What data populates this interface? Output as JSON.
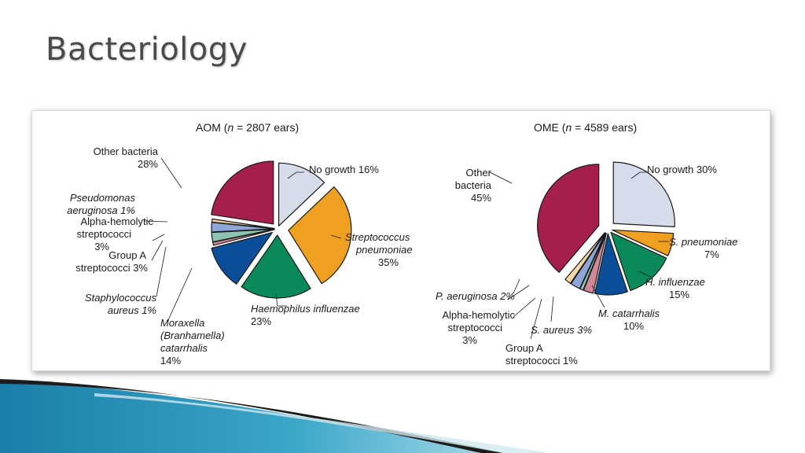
{
  "slide": {
    "title": "Bacteriology"
  },
  "colors": {
    "no_growth": "#d6dcea",
    "s_pneumoniae": "#f0a020",
    "h_influenzae": "#0a8a5a",
    "moraxella": "#0a4e9a",
    "s_aureus": "#d08898",
    "group_a": "#8cc4b0",
    "alpha_hemolytic": "#8ea6d8",
    "pseudomonas": "#f6d8a8",
    "other": "#a4204a"
  },
  "chart_data": [
    {
      "type": "pie",
      "title_pre": "AOM (",
      "title_n": "n",
      "title_post": " = 2807 ears)",
      "slices": [
        {
          "name": "No growth",
          "value": 16,
          "color_key": "no_growth"
        },
        {
          "name": "Streptococcus pneumoniae",
          "value": 35,
          "color_key": "s_pneumoniae"
        },
        {
          "name": "Haemophilus influenzae",
          "value": 23,
          "color_key": "h_influenzae"
        },
        {
          "name": "Moraxella (Branhamella) catarrhalis",
          "value": 14,
          "color_key": "moraxella"
        },
        {
          "name": "Staphylococcus aureus",
          "value": 1,
          "color_key": "s_aureus"
        },
        {
          "name": "Group A streptococci",
          "value": 3,
          "color_key": "group_a"
        },
        {
          "name": "Alpha-hemolytic streptococci",
          "value": 3,
          "color_key": "alpha_hemolytic"
        },
        {
          "name": "Pseudomonas aeruginosa",
          "value": 1,
          "color_key": "pseudomonas"
        },
        {
          "name": "Other bacteria",
          "value": 28,
          "color_key": "other"
        }
      ],
      "labels": {
        "no_growth": "No growth 16%",
        "s_pneumoniae": [
          "Streptococcus",
          "pneumoniae",
          "35%"
        ],
        "h_influenzae": [
          "Haemophilus influenzae",
          "23%"
        ],
        "moraxella": [
          "Moraxella",
          "(Branhamella)",
          "catarrhalis",
          "14%"
        ],
        "s_aureus": [
          "Staphylococcus",
          "aureus 1%"
        ],
        "group_a": [
          "Group A",
          "streptococci 3%"
        ],
        "alpha_hemolytic": [
          "Alpha-hemolytic",
          "streptococci",
          "3%"
        ],
        "pseudomonas": [
          "Pseudomonas",
          "aeruginosa 1%"
        ],
        "other": [
          "Other bacteria",
          "28%"
        ]
      }
    },
    {
      "type": "pie",
      "title_pre": "OME (",
      "title_n": "n",
      "title_post": " = 4589 ears)",
      "slices": [
        {
          "name": "No growth",
          "value": 30,
          "color_key": "no_growth"
        },
        {
          "name": "S. pneumoniae",
          "value": 7,
          "color_key": "s_pneumoniae"
        },
        {
          "name": "H. influenzae",
          "value": 15,
          "color_key": "h_influenzae"
        },
        {
          "name": "M. catarrhalis",
          "value": 10,
          "color_key": "moraxella"
        },
        {
          "name": "S. aureus",
          "value": 3,
          "color_key": "s_aureus"
        },
        {
          "name": "Group A streptococci",
          "value": 1,
          "color_key": "group_a"
        },
        {
          "name": "Alpha-hemolytic streptococci",
          "value": 3,
          "color_key": "alpha_hemolytic"
        },
        {
          "name": "P. aeruginosa",
          "value": 2,
          "color_key": "pseudomonas"
        },
        {
          "name": "Other bacteria",
          "value": 45,
          "color_key": "other"
        }
      ],
      "labels": {
        "no_growth": "No growth 30%",
        "s_pneumoniae": [
          "S. pneumoniae",
          "7%"
        ],
        "h_influenzae": [
          "H. influenzae",
          "15%"
        ],
        "moraxella": [
          "M. catarrhalis",
          "10%"
        ],
        "s_aureus": "S. aureus 3%",
        "group_a": [
          "Group A",
          "streptococci 1%"
        ],
        "alpha_hemolytic": [
          "Alpha-hemolytic",
          "streptococci",
          "3%"
        ],
        "pseudomonas": "P. aeruginosa 2%",
        "other": [
          "Other",
          "bacteria",
          "45%"
        ]
      }
    }
  ]
}
